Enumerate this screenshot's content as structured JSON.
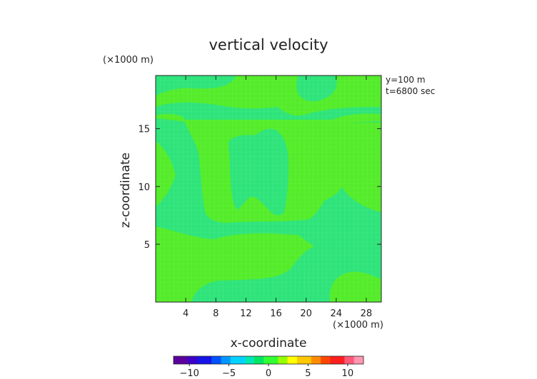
{
  "chart_data": {
    "type": "heatmap",
    "title": "vertical velocity",
    "xlabel": "x-coordinate",
    "ylabel": "z-coordinate",
    "x_unit": "(×1000 m)",
    "y_unit": "(×1000 m)",
    "annotations": [
      "y=100 m",
      "t=6800 sec"
    ],
    "xlim": [
      0,
      30
    ],
    "ylim": [
      0,
      19.6
    ],
    "x_ticks": [
      4,
      8,
      12,
      16,
      20,
      24,
      28
    ],
    "y_ticks": [
      5,
      10,
      15
    ],
    "colorbar": {
      "ticks": [
        -10,
        -5,
        0,
        5,
        10
      ],
      "range": [
        -12,
        12
      ],
      "colors": [
        "#5a009c",
        "#3c00c8",
        "#1414e6",
        "#0050ff",
        "#0096ff",
        "#00d2ff",
        "#00e6b4",
        "#00e664",
        "#32ff32",
        "#96ff00",
        "#ffff00",
        "#ffc800",
        "#ff8c00",
        "#ff4600",
        "#ff1e1e",
        "#ff5a78",
        "#ff96b4"
      ]
    },
    "regions": [
      {
        "level": "slightly positive",
        "value": 1.0,
        "color": "#54ec2a"
      },
      {
        "level": "slightly negative",
        "value": -0.3,
        "color": "#2ee47a"
      }
    ]
  }
}
